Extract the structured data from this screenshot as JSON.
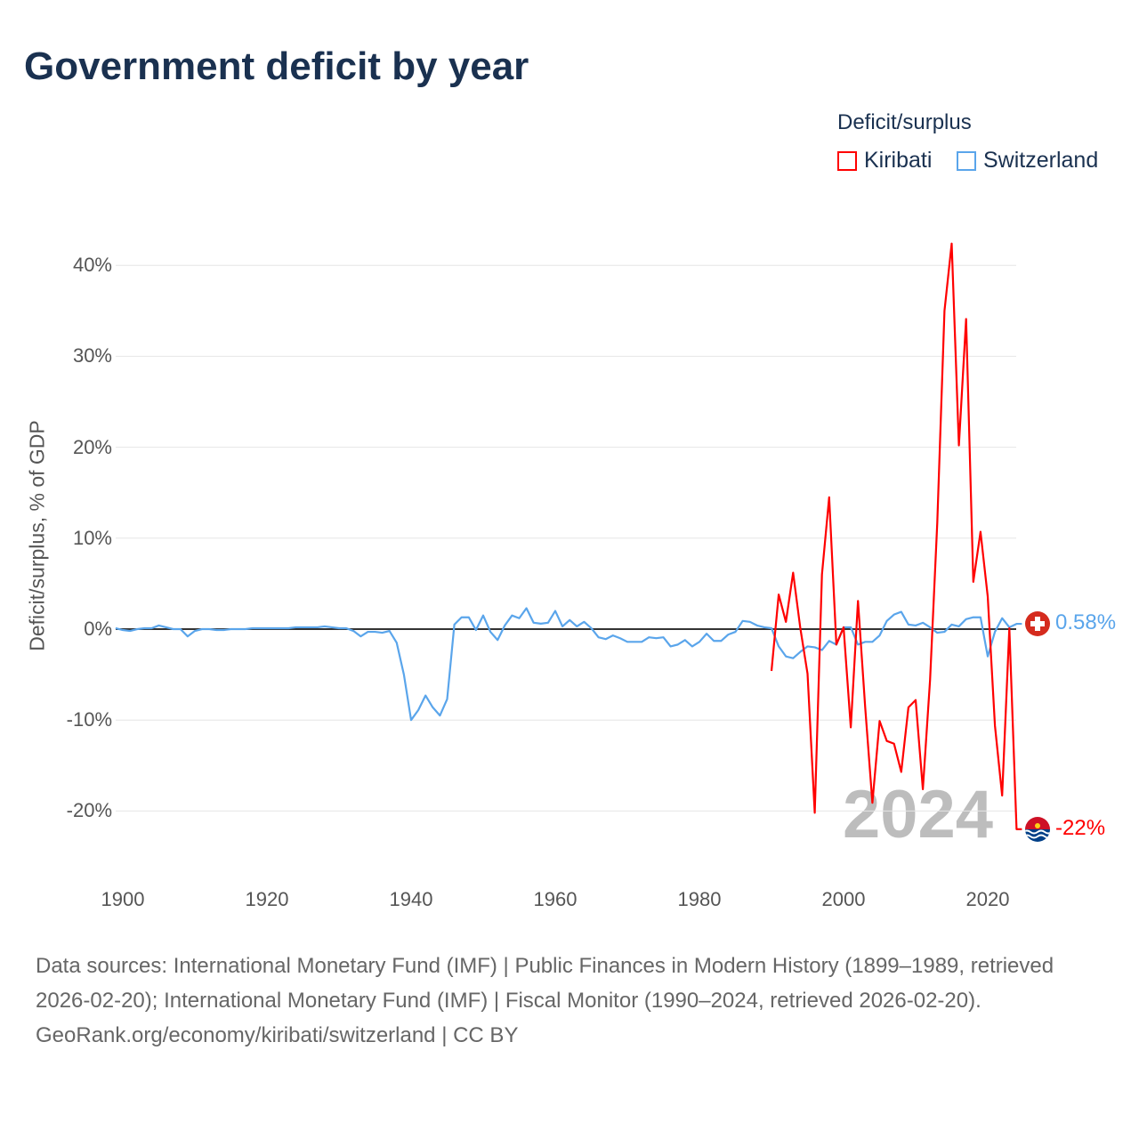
{
  "title": "Government deficit by year",
  "legend": {
    "title": "Deficit/surplus",
    "items": [
      {
        "name": "Kiribati",
        "color": "#ff0000"
      },
      {
        "name": "Switzerland",
        "color": "#5aa5eb"
      }
    ]
  },
  "watermark_year": "2024",
  "end_labels": {
    "switzerland": "0.58%",
    "kiribati": "-22%"
  },
  "chart_data": {
    "type": "line",
    "title": "Government deficit by year",
    "xlabel": "",
    "ylabel": "Deficit/surplus, % of GDP",
    "xlim": [
      1899,
      2025
    ],
    "ylim": [
      -25,
      43
    ],
    "x_ticks": [
      "1900",
      "1920",
      "1940",
      "1960",
      "1980",
      "2000",
      "2020"
    ],
    "y_ticks": [
      {
        "v": 40,
        "label": "40%"
      },
      {
        "v": 30,
        "label": "30%"
      },
      {
        "v": 20,
        "label": "20%"
      },
      {
        "v": 10,
        "label": "10%"
      },
      {
        "v": 0,
        "label": "0%"
      },
      {
        "v": -10,
        "label": "-10%"
      },
      {
        "v": -20,
        "label": "-20%"
      }
    ],
    "grid": true,
    "legend_position": "top-right",
    "series": [
      {
        "name": "Switzerland",
        "color": "#5aa5eb",
        "x": [
          1899,
          1900,
          1901,
          1902,
          1903,
          1904,
          1905,
          1906,
          1907,
          1908,
          1909,
          1910,
          1911,
          1912,
          1913,
          1914,
          1915,
          1916,
          1917,
          1918,
          1919,
          1920,
          1921,
          1922,
          1923,
          1924,
          1925,
          1926,
          1927,
          1928,
          1929,
          1930,
          1931,
          1932,
          1933,
          1934,
          1935,
          1936,
          1937,
          1938,
          1939,
          1940,
          1941,
          1942,
          1943,
          1944,
          1945,
          1946,
          1947,
          1948,
          1949,
          1950,
          1951,
          1952,
          1953,
          1954,
          1955,
          1956,
          1957,
          1958,
          1959,
          1960,
          1961,
          1962,
          1963,
          1964,
          1965,
          1966,
          1967,
          1968,
          1969,
          1970,
          1971,
          1972,
          1973,
          1974,
          1975,
          1976,
          1977,
          1978,
          1979,
          1980,
          1981,
          1982,
          1983,
          1984,
          1985,
          1986,
          1987,
          1988,
          1989,
          1990,
          1991,
          1992,
          1993,
          1994,
          1995,
          1996,
          1997,
          1998,
          1999,
          2000,
          2001,
          2002,
          2003,
          2004,
          2005,
          2006,
          2007,
          2008,
          2009,
          2010,
          2011,
          2012,
          2013,
          2014,
          2015,
          2016,
          2017,
          2018,
          2019,
          2020,
          2021,
          2022,
          2023,
          2024
        ],
        "values": [
          0.1,
          -0.1,
          -0.2,
          0.0,
          0.1,
          0.1,
          0.4,
          0.2,
          0.0,
          0.0,
          -0.8,
          -0.2,
          0.0,
          0.0,
          -0.1,
          -0.1,
          0.0,
          0.0,
          0.0,
          0.1,
          0.1,
          0.1,
          0.1,
          0.1,
          0.1,
          0.2,
          0.2,
          0.2,
          0.2,
          0.3,
          0.2,
          0.1,
          0.1,
          -0.2,
          -0.8,
          -0.3,
          -0.3,
          -0.4,
          -0.2,
          -1.5,
          -5.0,
          -10.0,
          -8.9,
          -7.3,
          -8.6,
          -9.5,
          -7.7,
          0.5,
          1.3,
          1.3,
          -0.1,
          1.5,
          -0.3,
          -1.2,
          0.4,
          1.5,
          1.2,
          2.3,
          0.7,
          0.6,
          0.7,
          2.0,
          0.3,
          1.0,
          0.3,
          0.8,
          0.1,
          -0.9,
          -1.1,
          -0.7,
          -1.0,
          -1.4,
          -1.4,
          -1.4,
          -0.9,
          -1.0,
          -0.9,
          -1.9,
          -1.7,
          -1.2,
          -1.9,
          -1.4,
          -0.5,
          -1.3,
          -1.3,
          -0.6,
          -0.3,
          0.9,
          0.8,
          0.4,
          0.2,
          0.1,
          -1.9,
          -3.0,
          -3.2,
          -2.5,
          -1.9,
          -2.0,
          -2.3,
          -1.3,
          -1.7,
          0.2,
          0.2,
          -1.7,
          -1.4,
          -1.4,
          -0.7,
          0.9,
          1.6,
          1.9,
          0.5,
          0.4,
          0.7,
          0.2,
          -0.4,
          -0.3,
          0.5,
          0.3,
          1.1,
          1.3,
          1.3,
          -3.0,
          -0.3,
          1.2,
          0.2,
          0.58
        ]
      },
      {
        "name": "Kiribati",
        "color": "#ff0000",
        "x": [
          1990,
          1991,
          1992,
          1993,
          1994,
          1995,
          1996,
          1997,
          1998,
          1999,
          2000,
          2001,
          2002,
          2003,
          2004,
          2005,
          2006,
          2007,
          2008,
          2009,
          2010,
          2011,
          2012,
          2013,
          2014,
          2015,
          2016,
          2017,
          2018,
          2019,
          2020,
          2021,
          2022,
          2023,
          2024
        ],
        "values": [
          -4.6,
          3.8,
          0.8,
          6.2,
          0.1,
          -4.9,
          -20.2,
          6.0,
          14.5,
          -1.7,
          0.2,
          -10.8,
          3.1,
          -8.6,
          -19.1,
          -10.1,
          -12.3,
          -12.6,
          -15.7,
          -8.6,
          -7.8,
          -17.6,
          -5.6,
          11.7,
          35.0,
          42.4,
          20.2,
          34.1,
          5.2,
          10.7,
          3.6,
          -10.6,
          -18.3,
          0.1,
          -22.0
        ]
      }
    ]
  },
  "footer": {
    "sources": "Data sources: International Monetary Fund (IMF) | Public Finances in Modern History (1899–1989, retrieved 2026-02-20); International Monetary Fund (IMF) | Fiscal Monitor (1990–2024, retrieved 2026-02-20).",
    "link": "GeoRank.org/economy/kiribati/switzerland | CC BY"
  }
}
